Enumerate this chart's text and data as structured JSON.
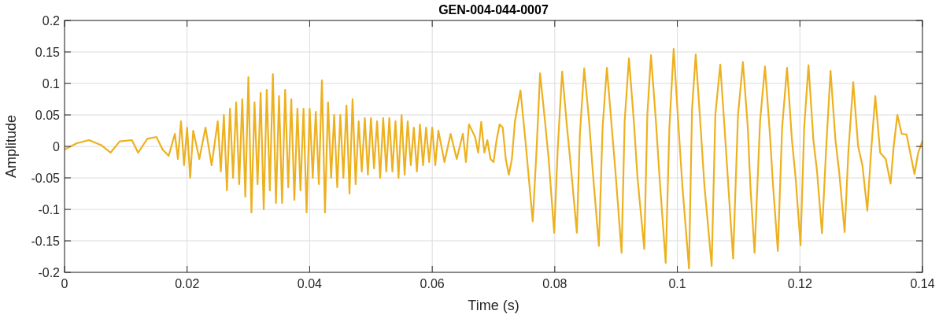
{
  "chart_data": {
    "type": "line",
    "title": "GEN-004-044-0007",
    "xlabel": "Time (s)",
    "ylabel": "Amplitude",
    "xlim": [
      0,
      0.14
    ],
    "ylim": [
      -0.2,
      0.2
    ],
    "xticks": [
      0,
      0.02,
      0.04,
      0.06,
      0.08,
      0.1,
      0.12,
      0.14
    ],
    "yticks": [
      -0.2,
      -0.15,
      -0.1,
      -0.05,
      0,
      0.05,
      0.1,
      0.15,
      0.2
    ],
    "grid": true,
    "series": [
      {
        "color": "#edb120",
        "x": [
          0,
          0.002,
          0.004,
          0.006,
          0.0075,
          0.009,
          0.011,
          0.012,
          0.0135,
          0.015,
          0.016,
          0.017,
          0.018,
          0.0185,
          0.019,
          0.0195,
          0.02,
          0.0205,
          0.021,
          0.022,
          0.023,
          0.024,
          0.025,
          0.0255,
          0.026,
          0.0265,
          0.027,
          0.0275,
          0.028,
          0.0285,
          0.029,
          0.0295,
          0.03,
          0.0305,
          0.031,
          0.0315,
          0.032,
          0.0325,
          0.033,
          0.0335,
          0.034,
          0.0345,
          0.035,
          0.0355,
          0.036,
          0.0365,
          0.037,
          0.0375,
          0.038,
          0.0385,
          0.039,
          0.0395,
          0.04,
          0.0405,
          0.041,
          0.0415,
          0.042,
          0.0425,
          0.043,
          0.0435,
          0.044,
          0.0445,
          0.045,
          0.0455,
          0.046,
          0.0465,
          0.047,
          0.0475,
          0.048,
          0.0485,
          0.049,
          0.0495,
          0.05,
          0.0505,
          0.051,
          0.0515,
          0.052,
          0.0525,
          0.053,
          0.0535,
          0.054,
          0.0545,
          0.055,
          0.0555,
          0.056,
          0.0565,
          0.057,
          0.0575,
          0.058,
          0.0585,
          0.059,
          0.0595,
          0.06,
          0.0605,
          0.061,
          0.062,
          0.063,
          0.064,
          0.065,
          0.0655,
          0.066,
          0.067,
          0.0675,
          0.068,
          0.0685,
          0.069,
          0.0695,
          0.07,
          0.0705,
          0.071,
          0.0715,
          0.072,
          0.0725,
          0.073,
          0.0735,
          0.0744,
          0.0752,
          0.0764,
          0.077,
          0.0776,
          0.0784,
          0.079,
          0.0799,
          0.0805,
          0.0812,
          0.082,
          0.0826,
          0.0836,
          0.0841,
          0.0848,
          0.0856,
          0.0862,
          0.0872,
          0.0878,
          0.0885,
          0.0893,
          0.0899,
          0.0909,
          0.0914,
          0.0921,
          0.0929,
          0.0935,
          0.0946,
          0.0951,
          0.0957,
          0.0965,
          0.0971,
          0.0981,
          0.0987,
          0.0994,
          0.1002,
          0.1008,
          0.1019,
          0.1024,
          0.103,
          0.1038,
          0.1044,
          0.1056,
          0.1062,
          0.107,
          0.1077,
          0.1083,
          0.1091,
          0.1099,
          0.1107,
          0.1115,
          0.1119,
          0.1126,
          0.1135,
          0.1143,
          0.1151,
          0.1156,
          0.1164,
          0.1171,
          0.1179,
          0.1187,
          0.1193,
          0.1201,
          0.1207,
          0.1214,
          0.1222,
          0.1228,
          0.1236,
          0.1243,
          0.125,
          0.1258,
          0.1264,
          0.1273,
          0.1279,
          0.1287,
          0.1295,
          0.1302,
          0.131,
          0.1316,
          0.1323,
          0.1331,
          0.134,
          0.1348,
          0.1353,
          0.1359,
          0.1366,
          0.1374,
          0.138,
          0.1387,
          0.1393,
          0.14
        ],
        "values": [
          -0.005,
          0.005,
          0.01,
          0.002,
          -0.01,
          0.008,
          0.01,
          -0.01,
          0.012,
          0.015,
          -0.005,
          -0.015,
          0.02,
          -0.02,
          0.04,
          -0.03,
          0.03,
          -0.05,
          0.025,
          -0.02,
          0.03,
          -0.03,
          0.04,
          -0.04,
          0.05,
          -0.07,
          0.06,
          -0.05,
          0.07,
          -0.06,
          0.075,
          -0.08,
          0.11,
          -0.105,
          0.07,
          -0.06,
          0.085,
          -0.1,
          0.09,
          -0.07,
          0.115,
          -0.09,
          0.08,
          -0.09,
          0.09,
          -0.065,
          0.075,
          -0.085,
          0.06,
          -0.07,
          0.06,
          -0.105,
          0.06,
          -0.05,
          0.055,
          -0.06,
          0.105,
          -0.105,
          0.07,
          -0.05,
          0.05,
          -0.065,
          0.05,
          -0.05,
          0.065,
          -0.075,
          0.075,
          -0.06,
          0.04,
          -0.04,
          0.045,
          -0.045,
          0.045,
          -0.035,
          0.04,
          -0.05,
          0.045,
          -0.04,
          0.045,
          -0.04,
          0.04,
          -0.05,
          0.05,
          -0.045,
          0.04,
          -0.03,
          0.03,
          -0.04,
          0.035,
          -0.03,
          0.03,
          -0.025,
          0.03,
          -0.03,
          0.025,
          -0.025,
          0.02,
          -0.02,
          0.02,
          -0.025,
          0.035,
          0.015,
          -0.01,
          0.039,
          -0.01,
          0.01,
          -0.02,
          -0.025,
          0.01,
          0.035,
          0.03,
          -0.02,
          -0.045,
          -0.02,
          0.04,
          0.089,
          0.01,
          -0.119,
          -0.01,
          0.116,
          0.04,
          -0.02,
          -0.137,
          0,
          0.119,
          0.03,
          -0.03,
          -0.137,
          0.02,
          0.124,
          0.04,
          -0.04,
          -0.158,
          0.03,
          0.125,
          0.03,
          -0.04,
          -0.169,
          0.04,
          0.14,
          0.04,
          -0.05,
          -0.163,
          0.05,
          0.145,
          0.04,
          -0.05,
          -0.185,
          0.03,
          0.155,
          0.03,
          -0.06,
          -0.194,
          0.06,
          0.146,
          0.03,
          -0.06,
          -0.19,
          0.05,
          0.13,
          0.03,
          -0.06,
          -0.178,
          0.05,
          0.134,
          0.03,
          -0.06,
          -0.169,
          0.04,
          0.127,
          0.02,
          -0.06,
          -0.166,
          0.03,
          0.125,
          0.01,
          -0.05,
          -0.157,
          0.03,
          0.129,
          0.01,
          -0.04,
          -0.138,
          0,
          0.12,
          0.01,
          -0.04,
          -0.136,
          -0.01,
          0.102,
          0,
          -0.03,
          -0.102,
          -0.01,
          0.08,
          -0.01,
          -0.02,
          -0.059,
          0,
          0.05,
          0.02,
          0.019,
          -0.01,
          -0.044,
          -0.01,
          0.009
        ]
      }
    ]
  }
}
